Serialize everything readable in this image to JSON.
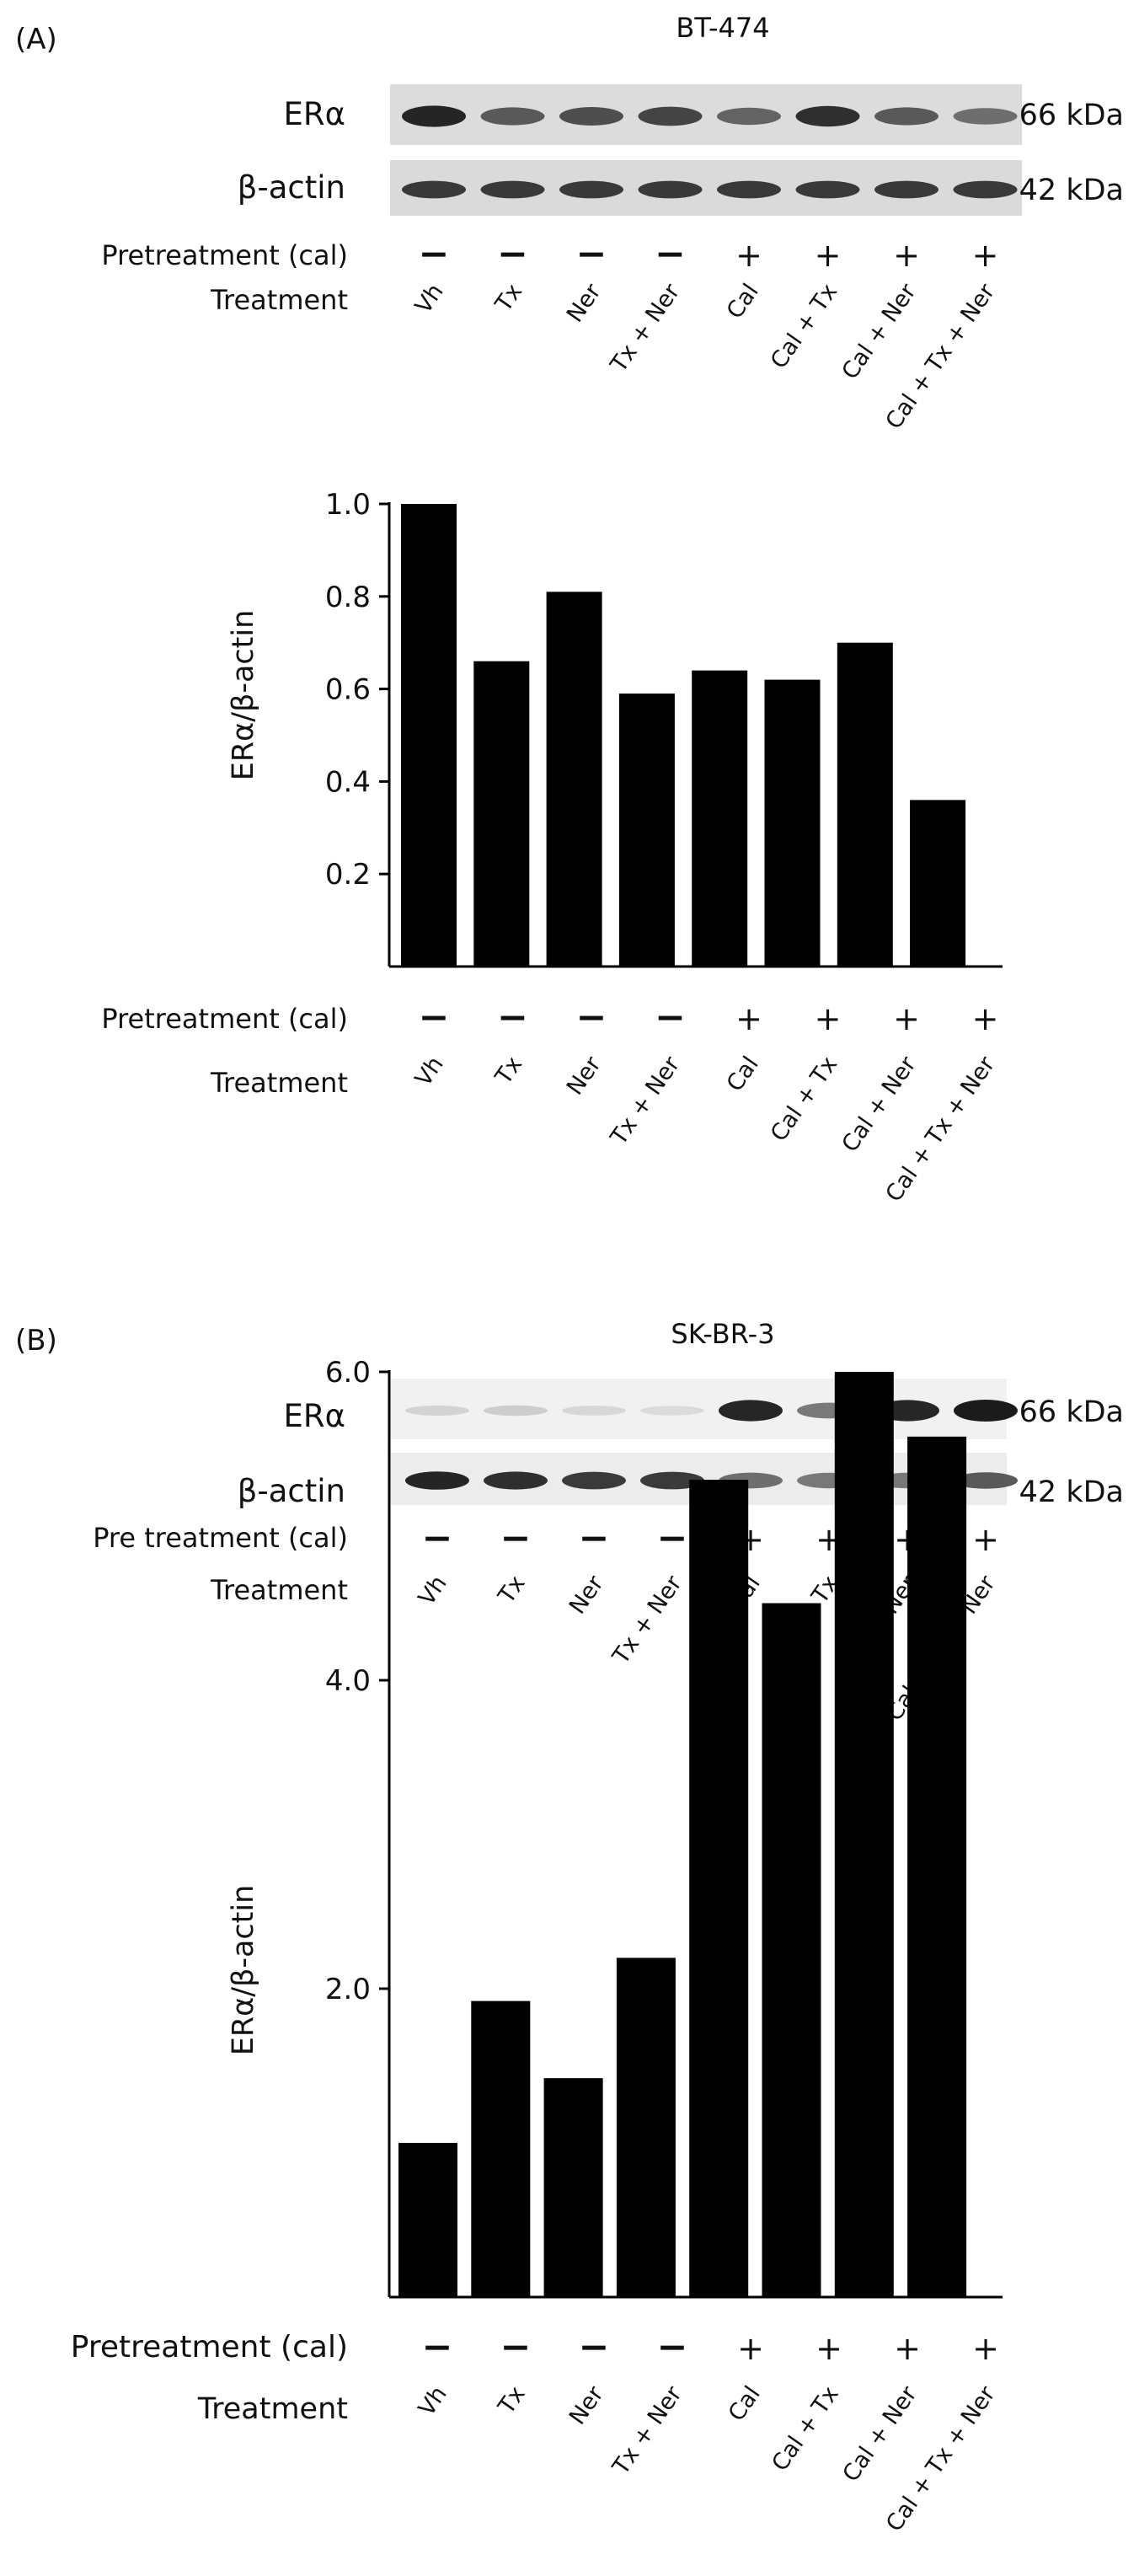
{
  "treatments": [
    "Vh",
    "Tx",
    "Ner",
    "Tx + Ner",
    "Cal",
    "Cal + Tx",
    "Cal + Ner",
    "Cal + Tx + Ner"
  ],
  "pretreatment_signs": [
    "−",
    "−",
    "−",
    "−",
    "+",
    "+",
    "+",
    "+"
  ],
  "panels": [
    {
      "letter": "(A)",
      "cell_line": "BT-474",
      "blot": {
        "era_label": "ERα",
        "actin_label": "β-actin",
        "era_kda": "66 kDa",
        "actin_kda": "42 kDa",
        "pretreatment_label": "Pretreatment (cal)",
        "treatment_label": "Treatment",
        "era_band_intensity": [
          0.95,
          0.7,
          0.75,
          0.8,
          0.65,
          0.9,
          0.7,
          0.6
        ],
        "actin_band_intensity": [
          0.85,
          0.85,
          0.85,
          0.85,
          0.85,
          0.85,
          0.85,
          0.85
        ],
        "era_background": "#dcdcdc",
        "actin_background": "#dadada"
      },
      "chart_pretreatment_label": "Pretreatment (cal)",
      "chart_treatment_label": "Treatment"
    },
    {
      "letter": "(B)",
      "cell_line": "SK-BR-3",
      "blot": {
        "era_label": "ERα",
        "actin_label": "β-actin",
        "era_kda": "66 kDa",
        "actin_kda": "42 kDa",
        "pretreatment_label": "Pre treatment (cal)",
        "treatment_label": "Treatment",
        "era_band_intensity": [
          0.12,
          0.15,
          0.1,
          0.08,
          0.95,
          0.55,
          0.95,
          1.0
        ],
        "actin_band_intensity": [
          0.95,
          0.9,
          0.85,
          0.85,
          0.6,
          0.55,
          0.55,
          0.7
        ],
        "era_background": "#f1f1f1",
        "actin_background": "#ececec"
      },
      "chart_pretreatment_label": "Pretreatment (cal)",
      "chart_treatment_label": "Treatment"
    }
  ],
  "chart_data": [
    {
      "type": "bar",
      "categories": [
        "Vh",
        "Tx",
        "Ner",
        "Tx + Ner",
        "Cal",
        "Cal + Tx",
        "Cal + Ner",
        "Cal + Tx + Ner"
      ],
      "values": [
        1.0,
        0.66,
        0.81,
        0.59,
        0.64,
        0.62,
        0.7,
        0.36
      ],
      "ylabel": "ERα/β-actin",
      "ylim": [
        0,
        1.0
      ],
      "yticks": [
        0.2,
        0.4,
        0.6,
        0.8,
        1.0
      ],
      "ytick_labels": [
        "0.2",
        "0.4",
        "0.6",
        "0.8",
        "1.0"
      ],
      "bar_color": "#000000",
      "grid": false
    },
    {
      "type": "bar",
      "categories": [
        "Vh",
        "Tx",
        "Ner",
        "Tx + Ner",
        "Cal",
        "Cal + Tx",
        "Cal + Ner",
        "Cal + Tx + Ner"
      ],
      "values": [
        1.0,
        1.92,
        1.42,
        2.2,
        5.3,
        4.5,
        6.0,
        5.58
      ],
      "ylabel": "ERα/β-actin",
      "ylim": [
        0,
        6.0
      ],
      "yticks": [
        2.0,
        4.0,
        6.0
      ],
      "ytick_labels": [
        "2.0",
        "4.0",
        "6.0"
      ],
      "bar_color": "#000000",
      "grid": false
    }
  ]
}
